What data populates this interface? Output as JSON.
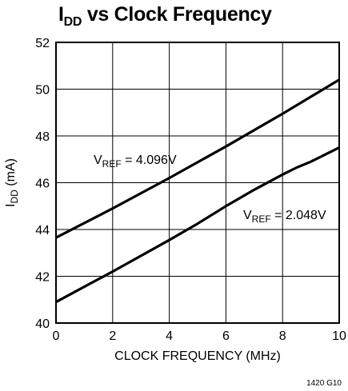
{
  "chart_data": {
    "type": "line",
    "title_main": "I",
    "title_sub": "DD",
    "title_rest": " vs Clock Frequency",
    "xlabel": "CLOCK FREQUENCY (MHz)",
    "ylabel_main": "I",
    "ylabel_sub": "DD",
    "ylabel_rest": " (mA)",
    "xlim": [
      0,
      10
    ],
    "ylim": [
      40,
      52
    ],
    "x_ticks": [
      0,
      2,
      4,
      6,
      8,
      10
    ],
    "y_ticks": [
      40,
      42,
      44,
      46,
      48,
      50,
      52
    ],
    "grid": true,
    "series": [
      {
        "label_main": "V",
        "label_sub": "REF",
        "label_rest": " = 4.096V",
        "x": [
          0,
          2,
          4,
          6,
          8,
          10
        ],
        "y": [
          43.65,
          44.9,
          46.2,
          47.55,
          48.95,
          50.4
        ]
      },
      {
        "label_main": "V",
        "label_sub": "REF",
        "label_rest": " = 2.048V",
        "x": [
          0,
          2,
          4,
          5,
          6,
          7,
          8,
          8.5,
          9,
          10
        ],
        "y": [
          40.9,
          42.2,
          43.55,
          44.25,
          45.0,
          45.7,
          46.35,
          46.65,
          46.9,
          47.5
        ]
      }
    ],
    "footnote": "1420 G10"
  }
}
